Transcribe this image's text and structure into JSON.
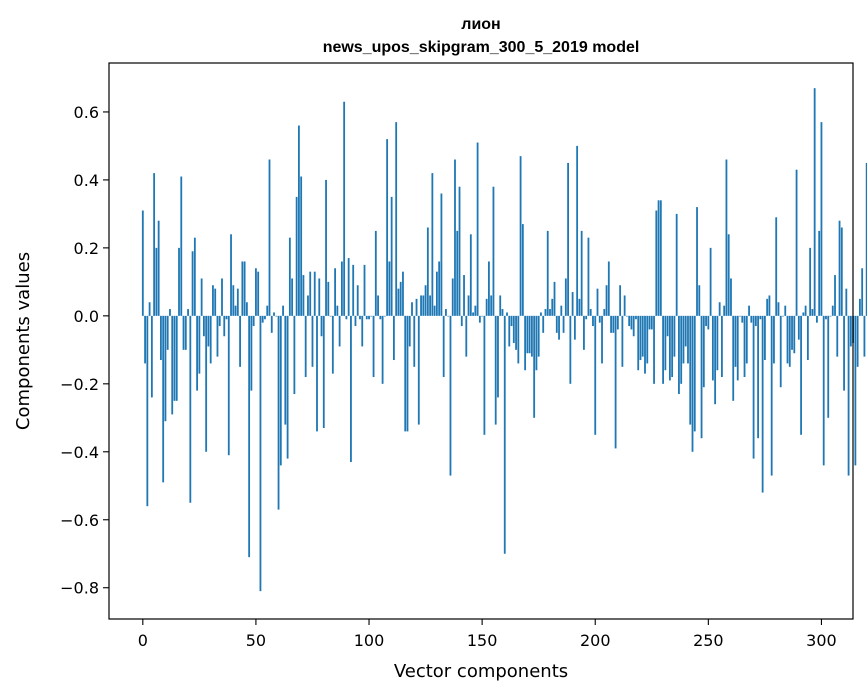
{
  "chart_data": {
    "type": "bar",
    "title": [
      "лион",
      "news_upos_skipgram_300_5_2019 model"
    ],
    "xlabel": "Vector components",
    "ylabel": "Components values",
    "xlim": [
      -14.95,
      313.95
    ],
    "ylim": [
      -0.892,
      0.744
    ],
    "xticks": [
      0,
      50,
      100,
      150,
      200,
      250,
      300
    ],
    "yticks": [
      -0.8,
      -0.6,
      -0.4,
      -0.2,
      0.0,
      0.2,
      0.4,
      0.6
    ],
    "ytick_labels": [
      "−0.8",
      "−0.6",
      "−0.4",
      "−0.2",
      "0.0",
      "0.2",
      "0.4",
      "0.6"
    ],
    "grid": false,
    "bar_color": "#1f77b4",
    "values": [
      0.31,
      -0.14,
      -0.56,
      0.04,
      -0.24,
      0.42,
      0.2,
      0.28,
      -0.13,
      -0.49,
      -0.31,
      -0.1,
      0.02,
      -0.29,
      -0.25,
      -0.25,
      0.2,
      0.41,
      -0.1,
      -0.1,
      0.02,
      -0.55,
      0.19,
      0.23,
      -0.22,
      -0.17,
      0.11,
      -0.06,
      -0.4,
      -0.09,
      -0.14,
      0.09,
      0.08,
      -0.12,
      -0.03,
      0.11,
      -0.06,
      -0.01,
      -0.41,
      0.24,
      0.09,
      0.03,
      0.08,
      -0.15,
      0.16,
      0.16,
      0.04,
      -0.71,
      -0.22,
      -0.03,
      0.14,
      0.13,
      -0.81,
      -0.02,
      -0.01,
      0.03,
      0.46,
      -0.05,
      0.01,
      0.0,
      -0.57,
      -0.44,
      0.03,
      -0.32,
      -0.42,
      0.23,
      0.11,
      -0.23,
      0.35,
      0.56,
      0.41,
      0.12,
      -0.18,
      0.06,
      0.13,
      -0.15,
      0.13,
      -0.34,
      0.11,
      -0.06,
      -0.33,
      0.4,
      0.1,
      0.0,
      -0.17,
      0.14,
      0.03,
      -0.09,
      0.16,
      0.63,
      -0.01,
      0.17,
      -0.43,
      0.15,
      -0.03,
      0.09,
      -0.01,
      -0.09,
      0.15,
      -0.01,
      -0.01,
      0.0,
      -0.18,
      0.25,
      0.06,
      -0.01,
      -0.2,
      0.0,
      0.52,
      0.16,
      0.35,
      -0.13,
      0.57,
      0.08,
      0.1,
      0.13,
      -0.34,
      -0.34,
      -0.09,
      0.04,
      -0.15,
      0.05,
      -0.32,
      0.06,
      0.06,
      0.09,
      0.26,
      0.06,
      0.42,
      0.03,
      0.13,
      0.16,
      0.36,
      -0.18,
      0.02,
      0.0,
      -0.47,
      0.11,
      0.46,
      0.25,
      0.38,
      -0.03,
      0.12,
      -0.12,
      0.06,
      0.24,
      0.01,
      0.03,
      0.51,
      -0.02,
      0.0,
      -0.35,
      0.05,
      0.16,
      0.06,
      0.38,
      -0.32,
      -0.24,
      0.06,
      0.02,
      -0.7,
      0.01,
      -0.09,
      -0.03,
      -0.08,
      -0.1,
      -0.14,
      0.47,
      0.27,
      -0.16,
      -0.11,
      -0.11,
      -0.12,
      -0.3,
      -0.16,
      -0.12,
      0.01,
      -0.05,
      0.02,
      0.25,
      0.02,
      0.05,
      0.1,
      -0.05,
      -0.07,
      0.03,
      -0.05,
      0.11,
      0.45,
      -0.2,
      0.07,
      -0.07,
      0.5,
      0.05,
      0.25,
      -0.1,
      -0.01,
      0.23,
      0.02,
      -0.03,
      -0.35,
      0.08,
      -0.02,
      -0.14,
      0.02,
      0.09,
      0.16,
      -0.05,
      -0.05,
      -0.39,
      -0.04,
      0.09,
      -0.15,
      0.06,
      0.0,
      -0.03,
      -0.04,
      -0.06,
      -0.01,
      -0.16,
      -0.13,
      -0.12,
      -0.17,
      -0.14,
      -0.04,
      -0.04,
      -0.2,
      0.31,
      0.34,
      0.34,
      -0.2,
      -0.16,
      -0.06,
      -0.19,
      -0.18,
      -0.12,
      0.3,
      -0.23,
      -0.2,
      -0.14,
      -0.09,
      -0.14,
      -0.32,
      -0.4,
      -0.34,
      0.32,
      0.09,
      -0.36,
      -0.21,
      -0.03,
      -0.04,
      0.2,
      -0.19,
      -0.26,
      -0.16,
      0.04,
      -0.18,
      0.03,
      0.46,
      0.24,
      0.11,
      -0.25,
      -0.15,
      -0.19,
      0.0,
      -0.02,
      -0.18,
      -0.14,
      0.03,
      -0.02,
      -0.42,
      -0.03,
      -0.36,
      -0.01,
      -0.52,
      -0.13,
      0.05,
      0.06,
      -0.47,
      -0.14,
      0.29,
      0.04,
      -0.21,
      0.0,
      0.03,
      -0.14,
      -0.15,
      -0.1,
      -0.11,
      0.43,
      -0.07,
      -0.35,
      0.01,
      0.03,
      -0.13,
      0.2,
      0.02,
      0.67,
      -0.02,
      0.25,
      0.57,
      -0.44,
      -0.01,
      -0.3,
      0.0,
      0.03,
      0.12,
      -0.12,
      0.28,
      0.26,
      -0.22,
      0.08,
      -0.47,
      -0.09,
      -0.08,
      -0.44,
      -0.15,
      0.05,
      0.14,
      -0.12,
      0.45
    ]
  }
}
